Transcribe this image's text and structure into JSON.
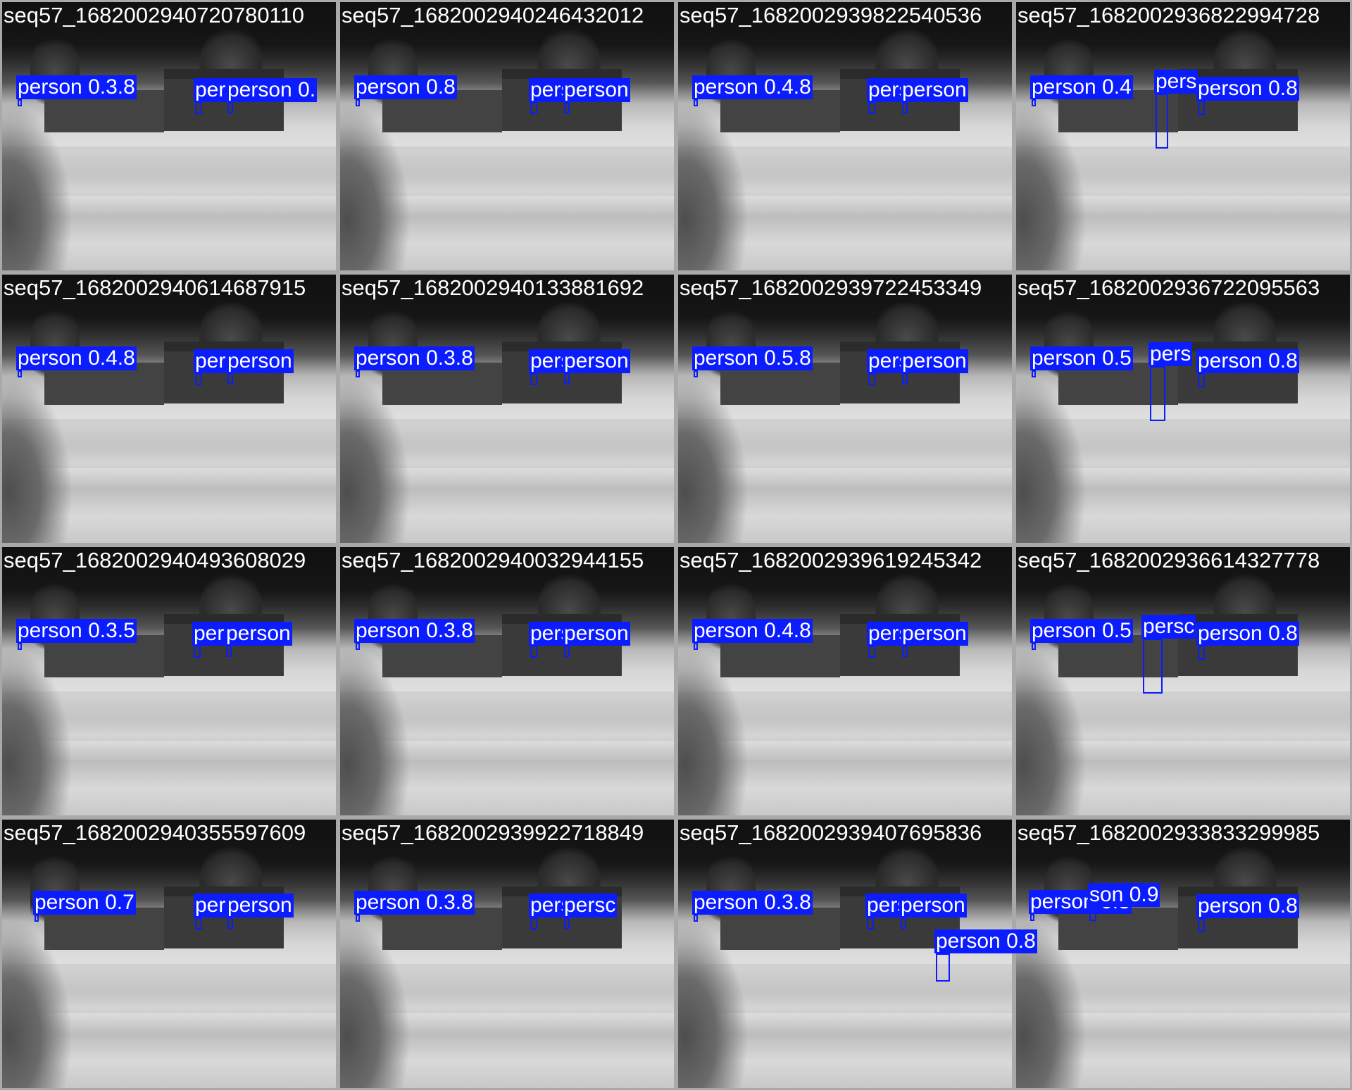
{
  "colors": {
    "box": "#0b1cff",
    "label_text": "#ffffff",
    "tile_border": "#a9a9a9"
  },
  "tiles": [
    {
      "file": "seq57_1682002940720780110",
      "detections": [
        {
          "label": "person 0.3.8"
        },
        {
          "label": "pers"
        },
        {
          "label": "person 0."
        }
      ]
    },
    {
      "file": "seq57_1682002940246432012",
      "detections": [
        {
          "label": "person 0.8"
        },
        {
          "label": "pers"
        },
        {
          "label": "person"
        }
      ]
    },
    {
      "file": "seq57_1682002939822540536",
      "detections": [
        {
          "label": "person 0.4.8"
        },
        {
          "label": "pers"
        },
        {
          "label": "person"
        }
      ]
    },
    {
      "file": "seq57_1682002936822994728",
      "detections": [
        {
          "label": "person 0.4"
        },
        {
          "label": "pers"
        },
        {
          "label": "person 0.8"
        }
      ]
    },
    {
      "file": "seq57_1682002940614687915",
      "detections": [
        {
          "label": "person 0.4.8"
        },
        {
          "label": "pers"
        },
        {
          "label": "person"
        }
      ]
    },
    {
      "file": "seq57_1682002940133881692",
      "detections": [
        {
          "label": "person 0.3.8"
        },
        {
          "label": "pers"
        },
        {
          "label": "person"
        }
      ]
    },
    {
      "file": "seq57_1682002939722453349",
      "detections": [
        {
          "label": "person 0.5.8"
        },
        {
          "label": "pers"
        },
        {
          "label": "person"
        }
      ]
    },
    {
      "file": "seq57_1682002936722095563",
      "detections": [
        {
          "label": "person 0.5"
        },
        {
          "label": "pers"
        },
        {
          "label": "person 0.8"
        }
      ]
    },
    {
      "file": "seq57_1682002940493608029",
      "detections": [
        {
          "label": "person 0.3.5"
        },
        {
          "label": "pers"
        },
        {
          "label": "person"
        }
      ]
    },
    {
      "file": "seq57_1682002940032944155",
      "detections": [
        {
          "label": "person 0.3.8"
        },
        {
          "label": "pers"
        },
        {
          "label": "person"
        }
      ]
    },
    {
      "file": "seq57_1682002939619245342",
      "detections": [
        {
          "label": "person 0.4.8"
        },
        {
          "label": "pers"
        },
        {
          "label": "person"
        }
      ]
    },
    {
      "file": "seq57_1682002936614327778",
      "detections": [
        {
          "label": "person 0.5"
        },
        {
          "label": "persc"
        },
        {
          "label": "person 0.8"
        }
      ]
    },
    {
      "file": "seq57_1682002940355597609",
      "detections": [
        {
          "label": "person 0.7"
        },
        {
          "label": "pers"
        },
        {
          "label": "person"
        }
      ]
    },
    {
      "file": "seq57_1682002939922718849",
      "detections": [
        {
          "label": "person 0.3.8"
        },
        {
          "label": "pers"
        },
        {
          "label": "persc"
        }
      ]
    },
    {
      "file": "seq57_1682002939407695836",
      "detections": [
        {
          "label": "person 0.3.8"
        },
        {
          "label": "pers"
        },
        {
          "label": "person"
        },
        {
          "label": "person 0.8"
        }
      ]
    },
    {
      "file": "seq57_1682002933833299985",
      "detections": [
        {
          "label": "person 0.3"
        },
        {
          "label": "son 0.9"
        },
        {
          "label": "person 0.8"
        }
      ]
    }
  ]
}
